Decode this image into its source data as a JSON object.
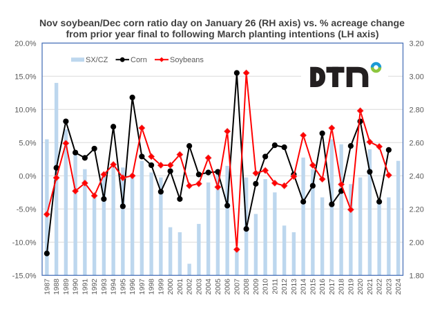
{
  "chart": {
    "logo": {
      "text": "DTN",
      "letter_color": "#231f20",
      "ring_top_color": "#1b9ad6",
      "ring_bottom_color": "#8dc63f"
    }
  },
  "chart_data": {
    "type": "line",
    "title": "Nov soybean/Dec corn ratio day on January 26 (RH axis)  vs. % acreage change from prior year final to following March planting intentions (LH axis)",
    "title_lines": [
      "Nov soybean/Dec corn ratio day on January 26 (RH axis)  vs. % acreage change",
      "from prior year final to following March planting intentions (LH axis)"
    ],
    "xlabel": "",
    "ylabel": "",
    "categories": [
      "1987",
      "1988",
      "1989",
      "1990",
      "1991",
      "1992",
      "1993",
      "1994",
      "1995",
      "1996",
      "1997",
      "1998",
      "1999",
      "2000",
      "2001",
      "2002",
      "2003",
      "2004",
      "2005",
      "2006",
      "2007",
      "2008",
      "2009",
      "2010",
      "2011",
      "2012",
      "2013",
      "2014",
      "2015",
      "2016",
      "2017",
      "2018",
      "2019",
      "2020",
      "2021",
      "2022",
      "2023",
      "2024"
    ],
    "series": [
      {
        "name": "SX/CZ",
        "type": "bar",
        "axis": "right",
        "color": "#bdd7ee",
        "values": [
          2.62,
          2.96,
          2.68,
          2.53,
          2.44,
          2.28,
          2.4,
          2.45,
          2.45,
          2.4,
          2.49,
          2.42,
          2.39,
          2.09,
          2.06,
          1.87,
          2.11,
          2.36,
          2.41,
          2.46,
          1.96,
          2.39,
          2.17,
          2.38,
          2.3,
          2.1,
          2.06,
          2.51,
          2.44,
          2.27,
          2.62,
          2.59,
          2.35,
          2.39,
          2.56,
          2.24,
          2.27,
          2.49
        ]
      },
      {
        "name": "Corn",
        "type": "line",
        "axis": "left",
        "color": "#000000",
        "marker": "circle",
        "values": [
          -11.7,
          1.2,
          8.2,
          3.5,
          2.7,
          4.1,
          -3.5,
          7.4,
          -4.6,
          11.8,
          2.9,
          1.6,
          -2.4,
          0.7,
          -3.5,
          4.5,
          0.2,
          0.5,
          0.6,
          -4.5,
          15.5,
          -8.0,
          -1.2,
          2.9,
          4.6,
          4.3,
          0.2,
          -3.9,
          -1.5,
          6.4,
          -4.3,
          -2.3,
          4.5,
          8.2,
          0.6,
          -3.9,
          3.9,
          null
        ]
      },
      {
        "name": "Soybeans",
        "type": "line",
        "axis": "left",
        "color": "#ff0000",
        "marker": "diamond",
        "values": [
          -5.8,
          -0.3,
          4.9,
          -2.3,
          -1.1,
          -3.0,
          0.2,
          1.7,
          -0.3,
          0.0,
          7.2,
          2.9,
          1.6,
          1.6,
          3.2,
          -1.5,
          -1.2,
          2.7,
          -1.7,
          6.7,
          -11.1,
          15.5,
          0.4,
          0.8,
          -1.1,
          -1.5,
          -0.1,
          6.1,
          1.6,
          -0.5,
          7.2,
          -1.3,
          -5.1,
          9.8,
          5.1,
          4.4,
          0.1,
          null
        ]
      }
    ],
    "y_left": {
      "range": [
        -15,
        20
      ],
      "step": 5,
      "unit": "% acreage change"
    },
    "y_right": {
      "range": [
        1.8,
        3.2
      ],
      "step": 0.2,
      "unit": "SX/CZ price ratio"
    },
    "y_left_ticks": [
      "20.0%",
      "15.0%",
      "10.0%",
      "5.0%",
      "0.0%",
      "-5.0%",
      "-10.0%",
      "-15.0%"
    ],
    "y_right_ticks": [
      "3.20",
      "3.00",
      "2.80",
      "2.60",
      "2.40",
      "2.20",
      "2.00",
      "1.80"
    ],
    "grid": true,
    "legend": {
      "position": "top-left",
      "entries": [
        "SX/CZ",
        "Corn",
        "Soybeans"
      ]
    },
    "axis_color": "#4a72b8",
    "grid_color": "#d9d9d9"
  }
}
